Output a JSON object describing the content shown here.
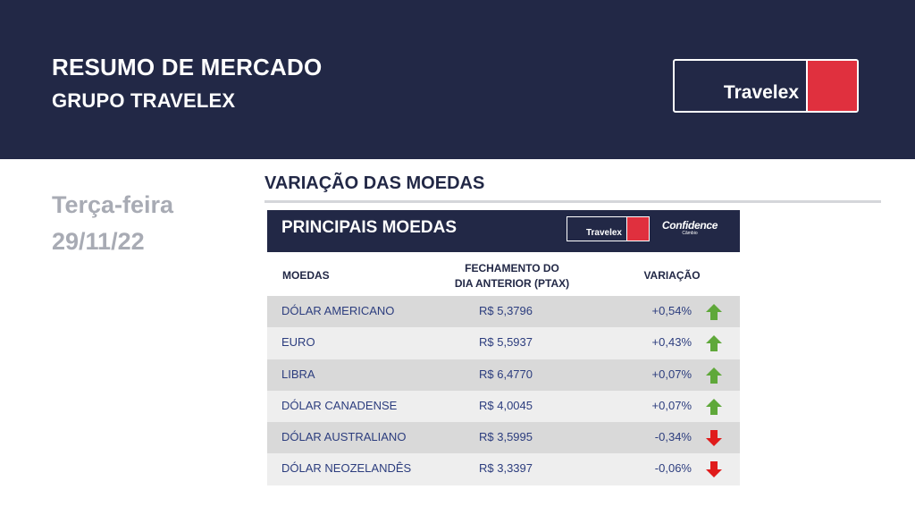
{
  "header": {
    "title_line1": "RESUMO DE MERCADO",
    "title_line2": "GRUPO TRAVELEX",
    "logo_text": "Travelex"
  },
  "date_block": {
    "weekday": "Terça-feira",
    "date": "29/11/22"
  },
  "section": {
    "title": "VARIAÇÃO DAS MOEDAS"
  },
  "card": {
    "title": "PRINCIPAIS MOEDAS",
    "mini_logo_text": "Travelex",
    "confidence_name": "Confidence",
    "confidence_sub": "Câmbio"
  },
  "table": {
    "headers": {
      "moedas": "MOEDAS",
      "fechamento_line1": "FECHAMENTO DO",
      "fechamento_line2": "DIA ANTERIOR (PTAX)",
      "variacao": "VARIAÇÃO"
    },
    "rows": [
      {
        "name": "DÓLAR AMERICANO",
        "value": "R$ 5,3796",
        "variation": "+0,54%",
        "direction": "up"
      },
      {
        "name": "EURO",
        "value": "R$ 5,5937",
        "variation": "+0,43%",
        "direction": "up"
      },
      {
        "name": "LIBRA",
        "value": "R$ 6,4770",
        "variation": "+0,07%",
        "direction": "up"
      },
      {
        "name": "DÓLAR CANADENSE",
        "value": "R$ 4,0045",
        "variation": "+0,07%",
        "direction": "up"
      },
      {
        "name": "DÓLAR AUSTRALIANO",
        "value": "R$ 3,5995",
        "variation": "-0,34%",
        "direction": "down"
      },
      {
        "name": "DÓLAR NEOZELANDÊS",
        "value": "R$ 3,3397",
        "variation": "-0,06%",
        "direction": "down"
      }
    ]
  },
  "colors": {
    "navy": "#222846",
    "brand_red": "#e0303e",
    "up_green": "#5fa83a",
    "down_red": "#e01b1b"
  }
}
